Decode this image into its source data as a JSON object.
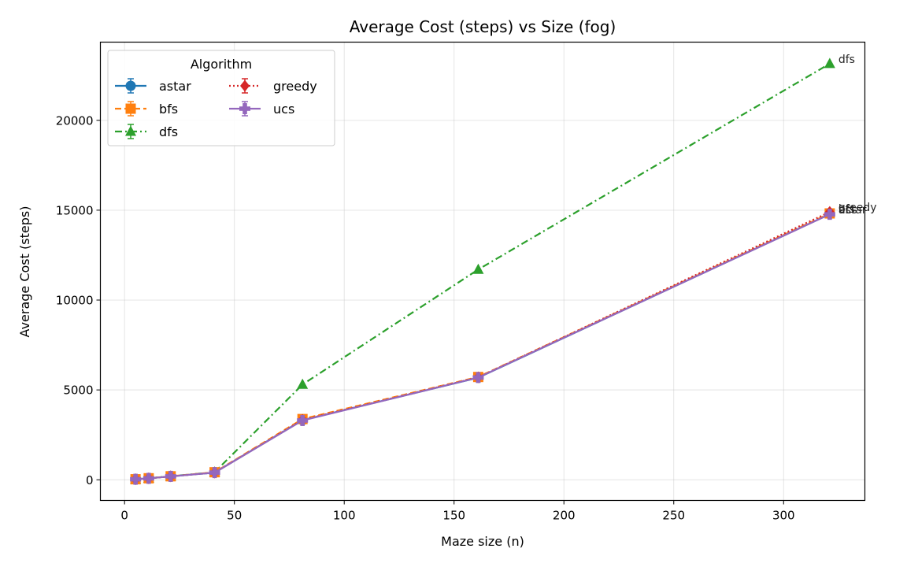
{
  "chart_data": {
    "type": "line",
    "title": "Average Cost (steps) vs Size (fog)",
    "xlabel": "Maze size (n)",
    "ylabel": "Average Cost (steps)",
    "xlim": [
      -11,
      337
    ],
    "ylim": [
      -1150,
      24350
    ],
    "xticks": [
      0,
      50,
      100,
      150,
      200,
      250,
      300
    ],
    "yticks": [
      0,
      5000,
      10000,
      15000,
      20000
    ],
    "grid": true,
    "legend": {
      "title": "Algorithm",
      "placement": "top-left",
      "columns": 2
    },
    "x": [
      5,
      11,
      21,
      41,
      81,
      161,
      321
    ],
    "series": [
      {
        "name": "astar",
        "color": "#1f77b4",
        "marker": "circle",
        "dash": "solid",
        "values": [
          30,
          80,
          190,
          400,
          3320,
          5680,
          14780
        ]
      },
      {
        "name": "bfs",
        "color": "#ff7f0e",
        "marker": "square",
        "dash": "dashed",
        "values": [
          30,
          85,
          195,
          420,
          3380,
          5720,
          14820
        ]
      },
      {
        "name": "dfs",
        "color": "#2ca02c",
        "marker": "triangle",
        "dash": "dashdot",
        "values": [
          30,
          85,
          200,
          420,
          5300,
          11700,
          23150
        ]
      },
      {
        "name": "greedy",
        "color": "#d62728",
        "marker": "diamond",
        "dash": "dotted",
        "values": [
          30,
          80,
          190,
          400,
          3330,
          5700,
          14900
        ]
      },
      {
        "name": "ucs",
        "color": "#9467bd",
        "marker": "plus",
        "dash": "solid",
        "values": [
          30,
          80,
          190,
          400,
          3300,
          5690,
          14770
        ]
      }
    ],
    "end_labels": [
      "astar",
      "bfs",
      "dfs",
      "greedy",
      "ucs"
    ]
  }
}
